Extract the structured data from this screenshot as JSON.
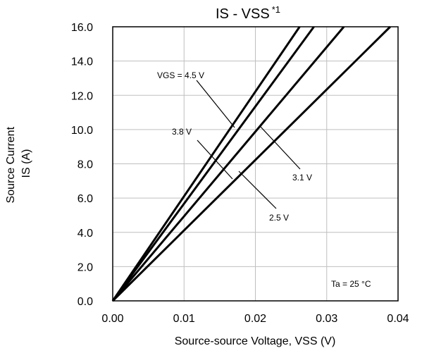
{
  "chart_data": {
    "type": "line",
    "title": "IS - VSS",
    "title_superscript": "*1",
    "xlabel": "Source-source Voltage, VSS (V)",
    "ylabel_line1": "Source Current",
    "ylabel_line2": "IS (A)",
    "xlim": [
      0,
      0.04
    ],
    "ylim": [
      0,
      16
    ],
    "grid": true,
    "x_ticks": [
      "0.00",
      "0.01",
      "0.02",
      "0.03",
      "0.04"
    ],
    "y_ticks": [
      "0.0",
      "2.0",
      "4.0",
      "6.0",
      "8.0",
      "10.0",
      "12.0",
      "14.0",
      "16.0"
    ],
    "series": [
      {
        "name": "VGS = 4.5 V",
        "x": [
          0,
          0.0262
        ],
        "y": [
          0,
          16
        ]
      },
      {
        "name": "3.8 V",
        "x": [
          0,
          0.0282
        ],
        "y": [
          0,
          16
        ]
      },
      {
        "name": "3.1 V",
        "x": [
          0,
          0.0324
        ],
        "y": [
          0,
          16
        ]
      },
      {
        "name": "2.5 V",
        "x": [
          0,
          0.0389
        ],
        "y": [
          0,
          16
        ]
      }
    ],
    "annotations": {
      "condition": "Ta = 25 °C"
    }
  }
}
